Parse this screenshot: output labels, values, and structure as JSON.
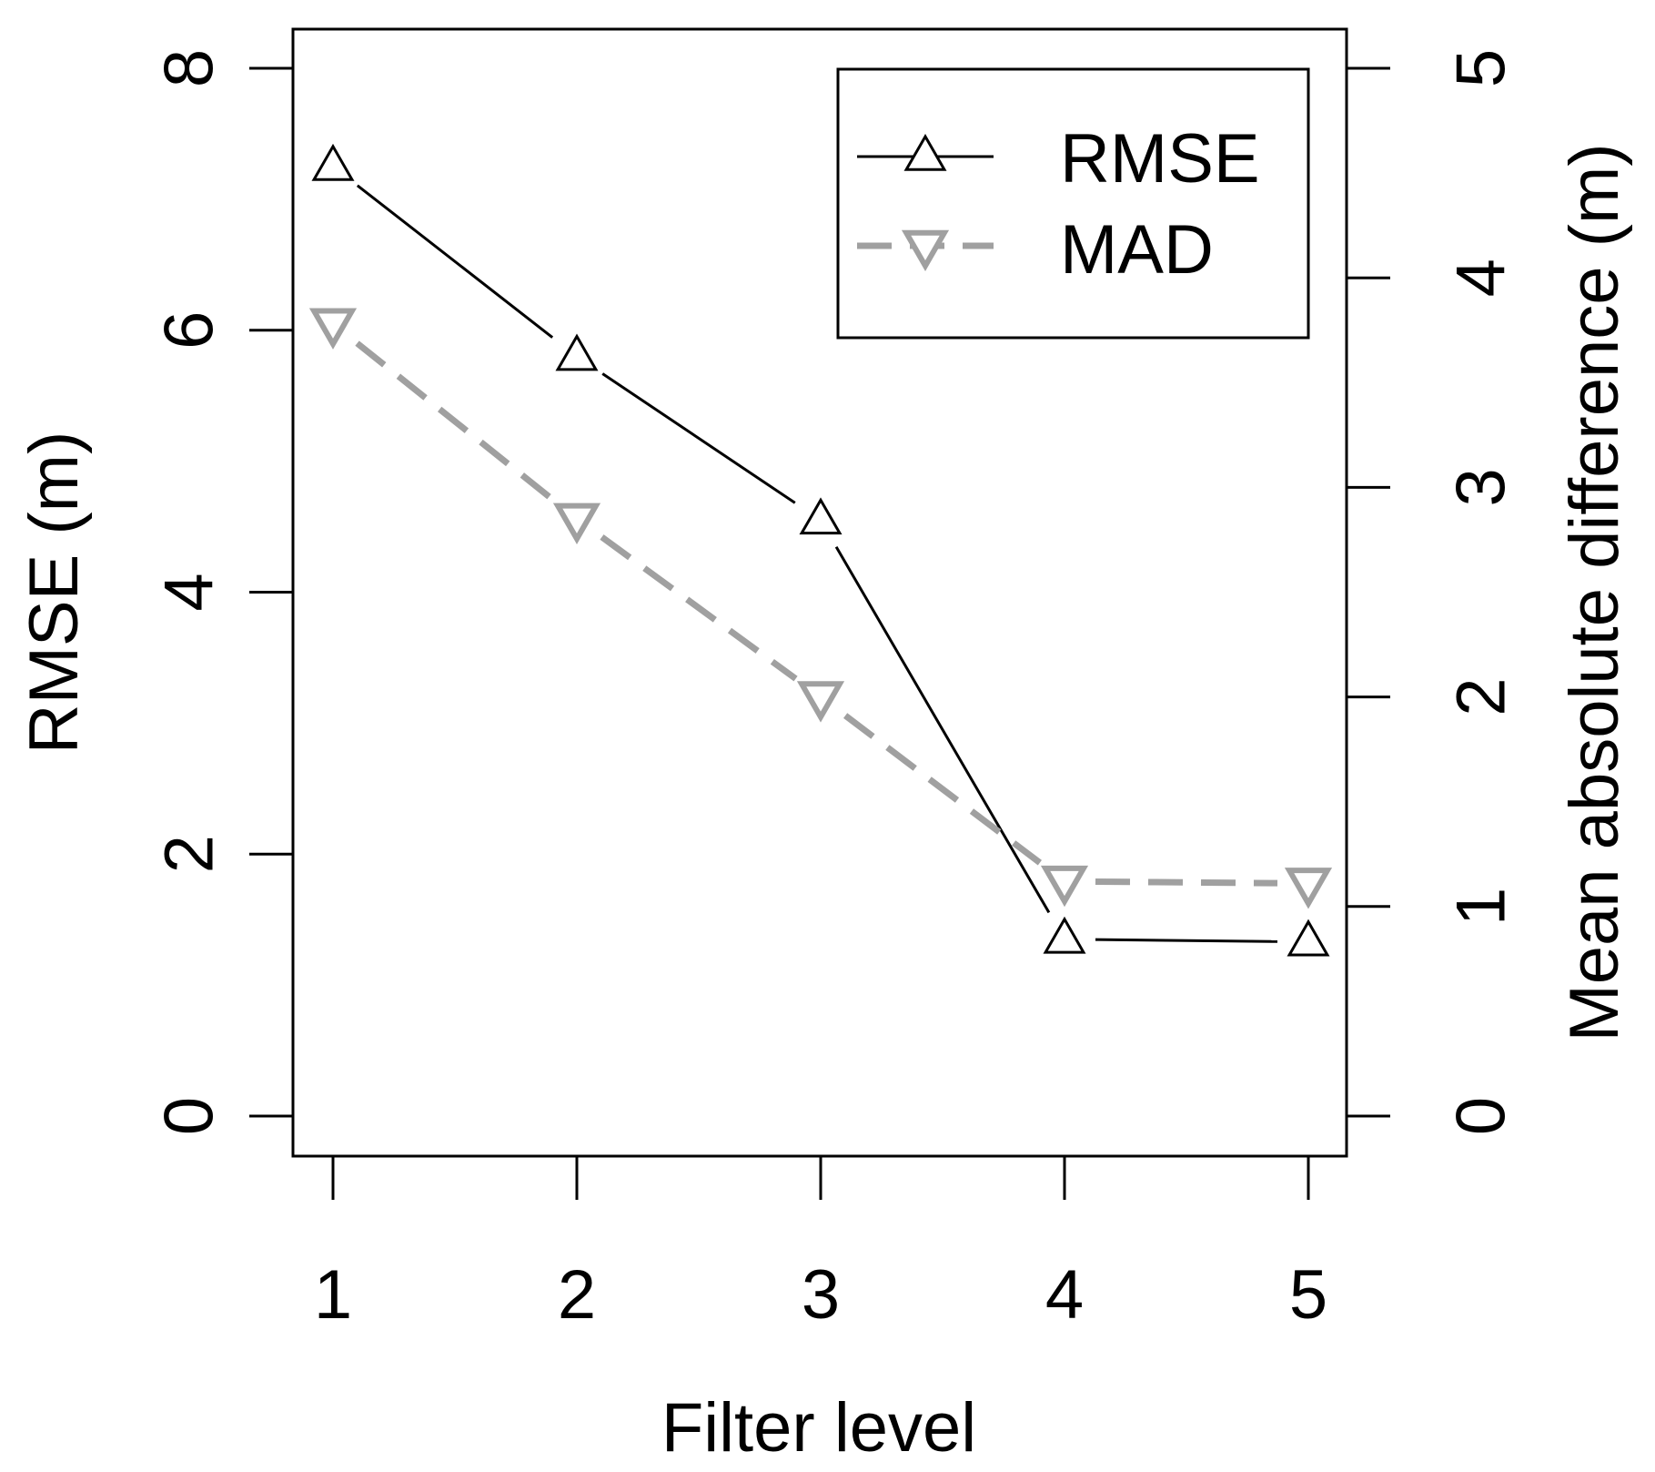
{
  "chart_data": {
    "type": "line",
    "x": [
      1,
      2,
      3,
      4,
      5
    ],
    "xlabel": "Filter level",
    "ylabel": "RMSE (m)",
    "ylabel_right": "Mean absolute difference (m)",
    "xlim": [
      1,
      5
    ],
    "ylim": [
      0,
      8
    ],
    "ylim_right": [
      0,
      5
    ],
    "x_ticks": [
      "1",
      "2",
      "3",
      "4",
      "5"
    ],
    "y_ticks": [
      "0",
      "2",
      "4",
      "6",
      "8"
    ],
    "y_ticks_right": [
      "0",
      "1",
      "2",
      "3",
      "4",
      "5"
    ],
    "grid": false,
    "legend_position": "top-right",
    "series": [
      {
        "name": "RMSE",
        "axis": "left",
        "marker": "triangle-up",
        "line_style": "solid",
        "color": "#000000",
        "values": [
          7.25,
          5.8,
          4.55,
          1.35,
          1.33
        ]
      },
      {
        "name": "MAD",
        "axis": "right",
        "marker": "triangle-down",
        "line_style": "dashed",
        "color": "#a0a0a0",
        "values": [
          3.78,
          2.85,
          2.0,
          1.12,
          1.11
        ]
      }
    ]
  }
}
